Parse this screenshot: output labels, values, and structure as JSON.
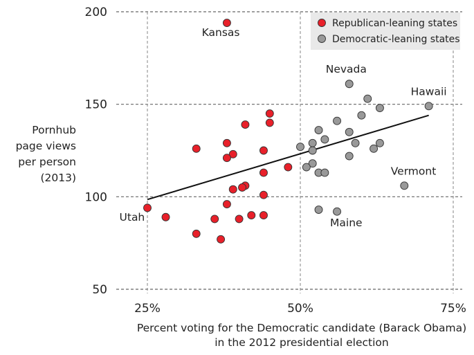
{
  "chart_data": {
    "type": "scatter",
    "xlabel": [
      "Percent voting for the Democratic candidate (Barack Obama)",
      "in the 2012 presidential election"
    ],
    "ylabel": [
      "Pornhub",
      "page views",
      "per person",
      "(2013)"
    ],
    "xlim": [
      20,
      75
    ],
    "ylim": [
      45,
      200
    ],
    "xticks": [
      25,
      50,
      75
    ],
    "xtick_labels": [
      "25%",
      "50%",
      "75%"
    ],
    "yticks": [
      50,
      100,
      150,
      200
    ],
    "ytick_labels": [
      "50",
      "100",
      "150",
      "200"
    ],
    "grid": true,
    "legend_position": "top-right",
    "colors": {
      "republican": "#e8202a",
      "democratic": "#999999",
      "trend": "#111111"
    },
    "series": [
      {
        "name": "Republican-leaning states",
        "color": "#e8202a",
        "points": [
          [
            38,
            194
          ],
          [
            45,
            145
          ],
          [
            41,
            139
          ],
          [
            45,
            140
          ],
          [
            33,
            126
          ],
          [
            38,
            129
          ],
          [
            39,
            123
          ],
          [
            38,
            121
          ],
          [
            44,
            125
          ],
          [
            48,
            116
          ],
          [
            44,
            113
          ],
          [
            41,
            106
          ],
          [
            40.5,
            105
          ],
          [
            39,
            104
          ],
          [
            44,
            101
          ],
          [
            38,
            96
          ],
          [
            25,
            94
          ],
          [
            28,
            89
          ],
          [
            36,
            88
          ],
          [
            40,
            88
          ],
          [
            42,
            90
          ],
          [
            44,
            90
          ],
          [
            33,
            80
          ],
          [
            37,
            77
          ]
        ]
      },
      {
        "name": "Democratic-leaning states",
        "color": "#999999",
        "points": [
          [
            58,
            161
          ],
          [
            61,
            153
          ],
          [
            63,
            148
          ],
          [
            71,
            149
          ],
          [
            60,
            144
          ],
          [
            56,
            141
          ],
          [
            53,
            136
          ],
          [
            58,
            135
          ],
          [
            54,
            131
          ],
          [
            52,
            129
          ],
          [
            59,
            129
          ],
          [
            63,
            129
          ],
          [
            50,
            127
          ],
          [
            62,
            126
          ],
          [
            52,
            125
          ],
          [
            58,
            122
          ],
          [
            52,
            118
          ],
          [
            51,
            116
          ],
          [
            53,
            113
          ],
          [
            54,
            113
          ],
          [
            67,
            106
          ],
          [
            53,
            93
          ],
          [
            56,
            92
          ]
        ]
      }
    ],
    "trendline": {
      "x": [
        25,
        71
      ],
      "y": [
        98.5,
        144
      ]
    },
    "annotations": [
      {
        "text": "Kansas",
        "x": 37,
        "y": 187
      },
      {
        "text": "Nevada",
        "x": 57.5,
        "y": 167
      },
      {
        "text": "Hawaii",
        "x": 71,
        "y": 155
      },
      {
        "text": "Vermont",
        "x": 68.5,
        "y": 112
      },
      {
        "text": "Utah",
        "x": 22.5,
        "y": 87
      },
      {
        "text": "Maine",
        "x": 57.5,
        "y": 84
      }
    ]
  }
}
